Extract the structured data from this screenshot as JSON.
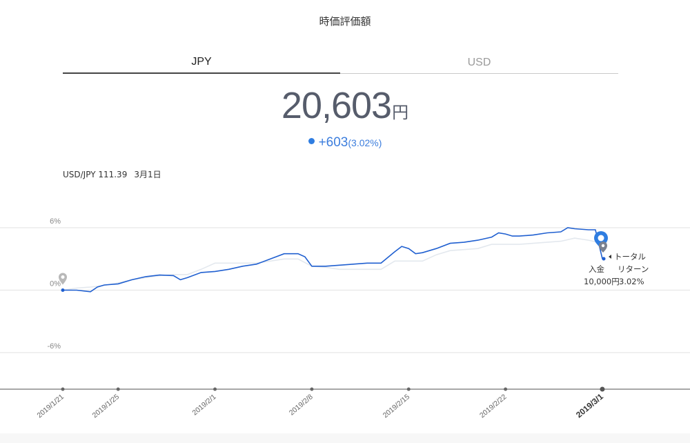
{
  "page": {
    "title": "時価評価額",
    "tabs": [
      {
        "label": "JPY",
        "active": true
      },
      {
        "label": "USD",
        "active": false
      }
    ],
    "value": {
      "amount": "20,603",
      "unit": "円"
    },
    "change": {
      "amount": "+603",
      "percent": "(3.02%)"
    },
    "fx_rate": {
      "label": "USD/JPY 111.39",
      "date": "3月1日"
    }
  },
  "colors": {
    "accent": "#2f7de1",
    "line_main": "#1f5fd0",
    "line_ghost": "#e3e8ee",
    "grid": "#e7e7e7",
    "text_value": "#565c6b"
  },
  "chart_data": {
    "type": "line",
    "y_unit": "%",
    "ylim": [
      -9,
      9
    ],
    "y_ticks": [
      {
        "value": 6,
        "label": "6%"
      },
      {
        "value": 0,
        "label": "0%"
      },
      {
        "value": -6,
        "label": "-6%"
      }
    ],
    "x_range": [
      "2019-01-21",
      "2019-03-06"
    ],
    "x_ticks": [
      {
        "date": "2019-01-21",
        "label": "2019/1/21",
        "bold": false
      },
      {
        "date": "2019-01-25",
        "label": "2019/1/25",
        "bold": false
      },
      {
        "date": "2019-02-01",
        "label": "2019/2/1",
        "bold": false
      },
      {
        "date": "2019-02-08",
        "label": "2019/2/8",
        "bold": false
      },
      {
        "date": "2019-02-15",
        "label": "2019/2/15",
        "bold": false
      },
      {
        "date": "2019-02-22",
        "label": "2019/2/22",
        "bold": false
      },
      {
        "date": "2019-03-01",
        "label": "2019/3/1",
        "bold": true
      }
    ],
    "series": [
      {
        "role": "main",
        "points": [
          [
            "2019-01-21",
            0.0
          ],
          [
            "2019-01-22",
            0.0
          ],
          [
            "2019-01-23",
            -0.15
          ],
          [
            "2019-01-23 12:00",
            0.3
          ],
          [
            "2019-01-24",
            0.5
          ],
          [
            "2019-01-25",
            0.6
          ],
          [
            "2019-01-26",
            1.0
          ],
          [
            "2019-01-27",
            1.3
          ],
          [
            "2019-01-28",
            1.45
          ],
          [
            "2019-01-29",
            1.4
          ],
          [
            "2019-01-29 12:00",
            1.0
          ],
          [
            "2019-01-30",
            1.2
          ],
          [
            "2019-01-31",
            1.7
          ],
          [
            "2019-02-01",
            1.8
          ],
          [
            "2019-02-02",
            2.0
          ],
          [
            "2019-02-03",
            2.3
          ],
          [
            "2019-02-04",
            2.5
          ],
          [
            "2019-02-05",
            3.0
          ],
          [
            "2019-02-06",
            3.5
          ],
          [
            "2019-02-07",
            3.5
          ],
          [
            "2019-02-07 12:00",
            3.2
          ],
          [
            "2019-02-08",
            2.3
          ],
          [
            "2019-02-09",
            2.3
          ],
          [
            "2019-02-10",
            2.4
          ],
          [
            "2019-02-11",
            2.5
          ],
          [
            "2019-02-12",
            2.6
          ],
          [
            "2019-02-13",
            2.6
          ],
          [
            "2019-02-14",
            3.7
          ],
          [
            "2019-02-14 12:00",
            4.2
          ],
          [
            "2019-02-15",
            4.0
          ],
          [
            "2019-02-15 12:00",
            3.5
          ],
          [
            "2019-02-16",
            3.6
          ],
          [
            "2019-02-17",
            4.0
          ],
          [
            "2019-02-18",
            4.5
          ],
          [
            "2019-02-19",
            4.6
          ],
          [
            "2019-02-20",
            4.8
          ],
          [
            "2019-02-21",
            5.1
          ],
          [
            "2019-02-21 12:00",
            5.5
          ],
          [
            "2019-02-22",
            5.4
          ],
          [
            "2019-02-22 12:00",
            5.2
          ],
          [
            "2019-02-23",
            5.2
          ],
          [
            "2019-02-24",
            5.3
          ],
          [
            "2019-02-25",
            5.5
          ],
          [
            "2019-02-26",
            5.6
          ],
          [
            "2019-02-26 12:00",
            6.0
          ],
          [
            "2019-02-27",
            5.9
          ],
          [
            "2019-02-28",
            5.8
          ],
          [
            "2019-02-28 12:00",
            5.8
          ],
          [
            "2019-03-01",
            3.02
          ]
        ]
      },
      {
        "role": "ghost",
        "points": [
          [
            "2019-01-21",
            0.0
          ],
          [
            "2019-01-22",
            0.2
          ],
          [
            "2019-01-23",
            0.3
          ],
          [
            "2019-01-24",
            0.45
          ],
          [
            "2019-01-25",
            0.7
          ],
          [
            "2019-01-26",
            1.0
          ],
          [
            "2019-01-27",
            1.2
          ],
          [
            "2019-01-28",
            1.4
          ],
          [
            "2019-01-29",
            1.5
          ],
          [
            "2019-01-30",
            1.5
          ],
          [
            "2019-01-31",
            2.0
          ],
          [
            "2019-02-01",
            2.6
          ],
          [
            "2019-02-02",
            2.6
          ],
          [
            "2019-02-03",
            2.6
          ],
          [
            "2019-02-04",
            2.6
          ],
          [
            "2019-02-05",
            2.8
          ],
          [
            "2019-02-06",
            3.0
          ],
          [
            "2019-02-07",
            3.0
          ],
          [
            "2019-02-08",
            2.3
          ],
          [
            "2019-02-09",
            2.2
          ],
          [
            "2019-02-10",
            2.0
          ],
          [
            "2019-02-11",
            2.0
          ],
          [
            "2019-02-12",
            2.0
          ],
          [
            "2019-02-13",
            2.0
          ],
          [
            "2019-02-14",
            2.8
          ],
          [
            "2019-02-15",
            2.8
          ],
          [
            "2019-02-16",
            2.8
          ],
          [
            "2019-02-17",
            3.4
          ],
          [
            "2019-02-18",
            3.8
          ],
          [
            "2019-02-19",
            3.9
          ],
          [
            "2019-02-20",
            4.0
          ],
          [
            "2019-02-21",
            4.4
          ],
          [
            "2019-02-22",
            4.4
          ],
          [
            "2019-02-23",
            4.4
          ],
          [
            "2019-02-24",
            4.5
          ],
          [
            "2019-02-25",
            4.6
          ],
          [
            "2019-02-26",
            4.7
          ],
          [
            "2019-02-27",
            5.0
          ],
          [
            "2019-02-28",
            4.8
          ],
          [
            "2019-03-01",
            4.5
          ]
        ]
      }
    ],
    "annotations": {
      "start_marker": {
        "date": "2019-01-21",
        "value": 0
      },
      "current": {
        "date": "2019-03-01",
        "value": 3.02
      },
      "total_return": {
        "label": "トータル",
        "label2": "リターン",
        "value": "3.02%"
      },
      "deposit": {
        "label": "入金",
        "value": "10,000円"
      }
    }
  }
}
